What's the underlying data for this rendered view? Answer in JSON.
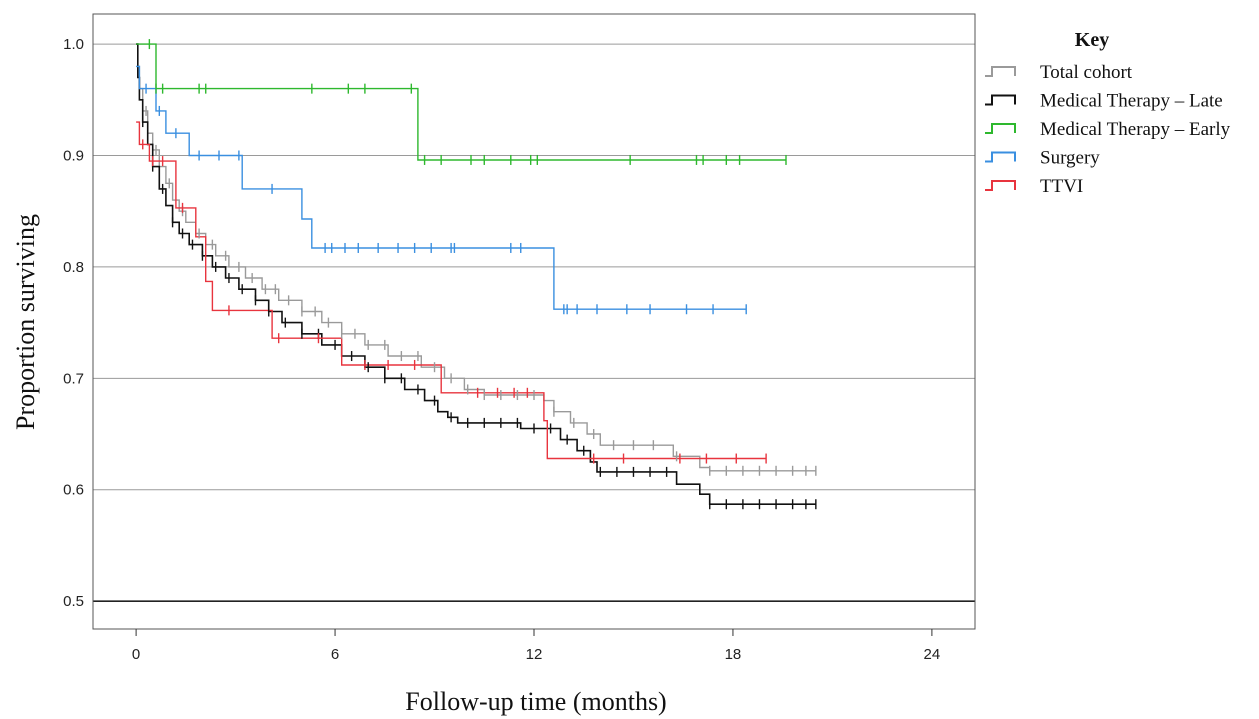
{
  "chart_data": {
    "type": "line",
    "subtype": "kaplan-meier step",
    "xlabel": "Follow-up time (months)",
    "ylabel": "Proportion surviving",
    "xlim": [
      -1.3,
      25.3
    ],
    "ylim": [
      0.475,
      1.027
    ],
    "xticks": [
      0,
      6,
      12,
      18,
      24
    ],
    "yticks": [
      0.5,
      0.6,
      0.7,
      0.8,
      0.9,
      1.0
    ],
    "ytick_labels": [
      "0.5",
      "0.6",
      "0.7",
      "0.8",
      "0.9",
      "1.0"
    ],
    "grid": "horizontal",
    "legend": {
      "title": "Key",
      "position": "top-right"
    },
    "series": [
      {
        "name": "Total cohort",
        "color": "#9a9a9a",
        "steps": [
          [
            0,
            1.0
          ],
          [
            0.05,
            0.98
          ],
          [
            0.1,
            0.96
          ],
          [
            0.2,
            0.94
          ],
          [
            0.35,
            0.92
          ],
          [
            0.5,
            0.905
          ],
          [
            0.7,
            0.89
          ],
          [
            0.9,
            0.875
          ],
          [
            1.1,
            0.86
          ],
          [
            1.3,
            0.85
          ],
          [
            1.5,
            0.84
          ],
          [
            1.8,
            0.83
          ],
          [
            2.1,
            0.82
          ],
          [
            2.4,
            0.81
          ],
          [
            2.8,
            0.8
          ],
          [
            3.3,
            0.79
          ],
          [
            3.8,
            0.78
          ],
          [
            4.3,
            0.77
          ],
          [
            5.0,
            0.76
          ],
          [
            5.6,
            0.75
          ],
          [
            6.2,
            0.74
          ],
          [
            6.9,
            0.73
          ],
          [
            7.6,
            0.72
          ],
          [
            8.6,
            0.71
          ],
          [
            9.3,
            0.7
          ],
          [
            9.9,
            0.69
          ],
          [
            10.5,
            0.685
          ],
          [
            12.3,
            0.68
          ],
          [
            12.6,
            0.67
          ],
          [
            13.1,
            0.66
          ],
          [
            13.6,
            0.65
          ],
          [
            14.0,
            0.64
          ],
          [
            16.2,
            0.63
          ],
          [
            17.0,
            0.62
          ],
          [
            17.3,
            0.617
          ],
          [
            20.5,
            0.617
          ]
        ],
        "censored": [
          0.3,
          0.6,
          1.0,
          1.4,
          1.9,
          2.3,
          2.7,
          3.1,
          3.5,
          3.9,
          4.2,
          4.6,
          5.0,
          5.4,
          5.8,
          6.2,
          6.6,
          7.0,
          7.5,
          8.0,
          8.5,
          9.0,
          9.5,
          10.0,
          10.5,
          11.0,
          11.5,
          12.0,
          12.6,
          13.2,
          13.8,
          14.4,
          15.0,
          15.6,
          16.3,
          17.3,
          17.8,
          18.3,
          18.8,
          19.3,
          19.8,
          20.2,
          20.5
        ]
      },
      {
        "name": "Medical Therapy – Late",
        "color": "#111111",
        "steps": [
          [
            0,
            1.0
          ],
          [
            0.05,
            0.97
          ],
          [
            0.1,
            0.95
          ],
          [
            0.2,
            0.93
          ],
          [
            0.35,
            0.91
          ],
          [
            0.5,
            0.89
          ],
          [
            0.7,
            0.87
          ],
          [
            0.9,
            0.855
          ],
          [
            1.1,
            0.84
          ],
          [
            1.3,
            0.83
          ],
          [
            1.6,
            0.82
          ],
          [
            2.0,
            0.81
          ],
          [
            2.3,
            0.8
          ],
          [
            2.7,
            0.79
          ],
          [
            3.1,
            0.78
          ],
          [
            3.6,
            0.77
          ],
          [
            4.0,
            0.76
          ],
          [
            4.4,
            0.75
          ],
          [
            5.0,
            0.74
          ],
          [
            5.6,
            0.73
          ],
          [
            6.2,
            0.72
          ],
          [
            6.9,
            0.71
          ],
          [
            7.5,
            0.7
          ],
          [
            8.1,
            0.69
          ],
          [
            8.7,
            0.68
          ],
          [
            9.1,
            0.67
          ],
          [
            9.4,
            0.665
          ],
          [
            9.7,
            0.66
          ],
          [
            11.6,
            0.655
          ],
          [
            12.8,
            0.645
          ],
          [
            13.3,
            0.635
          ],
          [
            13.7,
            0.625
          ],
          [
            13.9,
            0.616
          ],
          [
            16.3,
            0.605
          ],
          [
            17.0,
            0.596
          ],
          [
            17.3,
            0.587
          ],
          [
            20.5,
            0.587
          ]
        ],
        "censored": [
          0.2,
          0.5,
          0.8,
          1.1,
          1.4,
          1.7,
          2.0,
          2.4,
          2.8,
          3.2,
          3.6,
          4.0,
          4.5,
          5.0,
          5.5,
          6.0,
          6.5,
          7.0,
          7.5,
          8.0,
          8.5,
          9.0,
          9.5,
          10.0,
          10.5,
          11.0,
          11.5,
          12.0,
          12.5,
          13.0,
          13.5,
          14.0,
          14.5,
          15.0,
          15.5,
          16.0,
          17.3,
          17.8,
          18.3,
          18.8,
          19.3,
          19.8,
          20.2,
          20.5
        ]
      },
      {
        "name": "Medical Therapy – Early",
        "color": "#2eb82e",
        "steps": [
          [
            0,
            1.0
          ],
          [
            0.6,
            0.96
          ],
          [
            8.4,
            0.96
          ],
          [
            8.5,
            0.896
          ],
          [
            19.6,
            0.896
          ]
        ],
        "censored": [
          0.4,
          0.6,
          0.8,
          1.9,
          2.1,
          5.3,
          6.4,
          6.9,
          8.3,
          8.7,
          9.2,
          10.1,
          10.5,
          11.3,
          11.9,
          12.1,
          14.9,
          16.9,
          17.1,
          17.8,
          18.2,
          19.6
        ]
      },
      {
        "name": "Surgery",
        "color": "#3a8fe0",
        "steps": [
          [
            0,
            0.98
          ],
          [
            0.1,
            0.96
          ],
          [
            0.6,
            0.94
          ],
          [
            0.9,
            0.92
          ],
          [
            1.6,
            0.9
          ],
          [
            3.2,
            0.87
          ],
          [
            5.0,
            0.843
          ],
          [
            5.3,
            0.817
          ],
          [
            12.6,
            0.762
          ],
          [
            18.4,
            0.762
          ]
        ],
        "censored": [
          0.3,
          0.7,
          1.2,
          1.9,
          2.5,
          3.1,
          4.1,
          5.7,
          5.9,
          6.3,
          6.7,
          7.3,
          7.9,
          8.4,
          8.9,
          9.5,
          9.6,
          11.3,
          11.6,
          12.9,
          13.0,
          13.3,
          13.9,
          14.8,
          15.5,
          16.6,
          17.4,
          18.4
        ]
      },
      {
        "name": "TTVI",
        "color": "#e8343e",
        "steps": [
          [
            0,
            0.93
          ],
          [
            0.1,
            0.91
          ],
          [
            0.4,
            0.895
          ],
          [
            1.2,
            0.853
          ],
          [
            1.8,
            0.827
          ],
          [
            2.1,
            0.787
          ],
          [
            2.3,
            0.761
          ],
          [
            4.1,
            0.736
          ],
          [
            6.2,
            0.712
          ],
          [
            9.2,
            0.687
          ],
          [
            12.3,
            0.662
          ],
          [
            12.4,
            0.628
          ],
          [
            19.0,
            0.628
          ]
        ],
        "censored": [
          0.2,
          0.5,
          0.8,
          1.4,
          2.8,
          4.3,
          5.5,
          6.9,
          7.6,
          8.4,
          10.3,
          10.9,
          11.4,
          11.8,
          13.8,
          14.7,
          16.4,
          17.2,
          18.1,
          19.0
        ]
      }
    ]
  }
}
